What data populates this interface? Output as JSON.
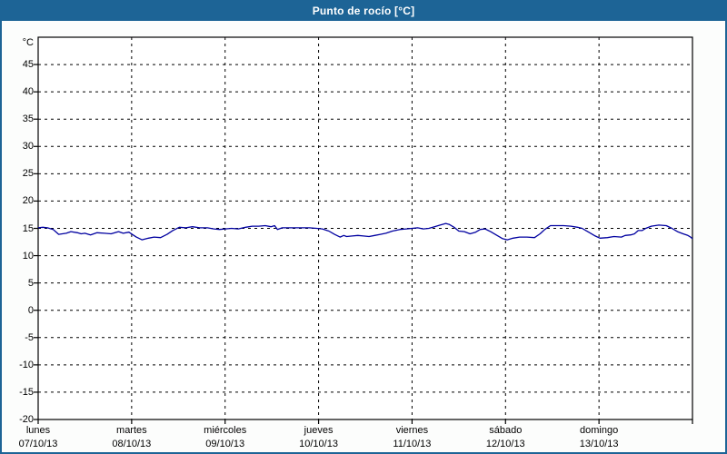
{
  "window": {
    "title": "Punto de rocío [°C]"
  },
  "colors": {
    "titlebar": "#1d6496",
    "frame_border": "#1d6496",
    "title_text": "#ffffff",
    "plot_bg": "#ffffff",
    "grid": "#000000",
    "axis": "#000000",
    "label_text": "#000000",
    "line": "#0000a0"
  },
  "chart_data": {
    "type": "line",
    "title": "Punto de rocío [°C]",
    "y_unit": "°C",
    "ylim": [
      -20,
      50
    ],
    "yticks": [
      45,
      40,
      35,
      30,
      25,
      20,
      15,
      10,
      5,
      0,
      -5,
      -10,
      -15,
      -20
    ],
    "xlim_days": [
      0,
      7
    ],
    "grid": "dashed",
    "legend": "none",
    "x_days": [
      {
        "name": "lunes",
        "date": "07/10/13"
      },
      {
        "name": "martes",
        "date": "08/10/13"
      },
      {
        "name": "miércoles",
        "date": "09/10/13"
      },
      {
        "name": "jueves",
        "date": "10/10/13"
      },
      {
        "name": "viernes",
        "date": "11/10/13"
      },
      {
        "name": "sábado",
        "date": "12/10/13"
      },
      {
        "name": "domingo",
        "date": "13/10/13"
      }
    ],
    "series": [
      {
        "name": "Punto de rocío",
        "color": "#0000a0",
        "points": [
          [
            0,
            15.1
          ],
          [
            0.05,
            15.2
          ],
          [
            0.1,
            15.1
          ],
          [
            0.16,
            14.8
          ],
          [
            0.22,
            13.9
          ],
          [
            0.26,
            14.0
          ],
          [
            0.3,
            14.1
          ],
          [
            0.35,
            14.4
          ],
          [
            0.42,
            14.2
          ],
          [
            0.46,
            14.0
          ],
          [
            0.5,
            14.1
          ],
          [
            0.56,
            13.8
          ],
          [
            0.63,
            14.2
          ],
          [
            0.71,
            14.1
          ],
          [
            0.78,
            14.0
          ],
          [
            0.86,
            14.4
          ],
          [
            0.91,
            14.1
          ],
          [
            0.97,
            14.3
          ],
          [
            1.05,
            13.4
          ],
          [
            1.11,
            12.9
          ],
          [
            1.18,
            13.2
          ],
          [
            1.24,
            13.4
          ],
          [
            1.31,
            13.3
          ],
          [
            1.38,
            13.9
          ],
          [
            1.44,
            14.6
          ],
          [
            1.51,
            15.2
          ],
          [
            1.58,
            15.1
          ],
          [
            1.65,
            15.3
          ],
          [
            1.73,
            15.1
          ],
          [
            1.81,
            15.1
          ],
          [
            1.88,
            14.9
          ],
          [
            1.94,
            14.8
          ],
          [
            2.0,
            14.9
          ],
          [
            2.07,
            15.0
          ],
          [
            2.14,
            14.9
          ],
          [
            2.22,
            15.2
          ],
          [
            2.29,
            15.4
          ],
          [
            2.36,
            15.4
          ],
          [
            2.43,
            15.5
          ],
          [
            2.49,
            15.3
          ],
          [
            2.53,
            15.5
          ],
          [
            2.56,
            14.8
          ],
          [
            2.61,
            15.1
          ],
          [
            2.7,
            15.1
          ],
          [
            2.8,
            15.1
          ],
          [
            2.9,
            15.1
          ],
          [
            2.98,
            15.0
          ],
          [
            3.04,
            14.9
          ],
          [
            3.11,
            14.5
          ],
          [
            3.17,
            13.9
          ],
          [
            3.23,
            13.4
          ],
          [
            3.27,
            13.7
          ],
          [
            3.3,
            13.5
          ],
          [
            3.36,
            13.6
          ],
          [
            3.42,
            13.7
          ],
          [
            3.48,
            13.6
          ],
          [
            3.54,
            13.5
          ],
          [
            3.6,
            13.7
          ],
          [
            3.66,
            13.9
          ],
          [
            3.72,
            14.1
          ],
          [
            3.79,
            14.5
          ],
          [
            3.87,
            14.8
          ],
          [
            3.94,
            14.9
          ],
          [
            4.0,
            15.0
          ],
          [
            4.06,
            15.1
          ],
          [
            4.12,
            14.9
          ],
          [
            4.18,
            15.0
          ],
          [
            4.24,
            15.3
          ],
          [
            4.3,
            15.6
          ],
          [
            4.36,
            15.9
          ],
          [
            4.4,
            15.7
          ],
          [
            4.45,
            15.2
          ],
          [
            4.5,
            14.5
          ],
          [
            4.56,
            14.4
          ],
          [
            4.62,
            14.0
          ],
          [
            4.68,
            14.3
          ],
          [
            4.73,
            14.8
          ],
          [
            4.78,
            14.9
          ],
          [
            4.84,
            14.4
          ],
          [
            4.91,
            13.7
          ],
          [
            4.97,
            13.1
          ],
          [
            5.02,
            12.9
          ],
          [
            5.08,
            13.2
          ],
          [
            5.15,
            13.4
          ],
          [
            5.23,
            13.4
          ],
          [
            5.31,
            13.3
          ],
          [
            5.37,
            14.0
          ],
          [
            5.42,
            14.8
          ],
          [
            5.48,
            15.5
          ],
          [
            5.55,
            15.5
          ],
          [
            5.62,
            15.5
          ],
          [
            5.7,
            15.4
          ],
          [
            5.77,
            15.2
          ],
          [
            5.82,
            15.0
          ],
          [
            5.89,
            14.3
          ],
          [
            5.96,
            13.6
          ],
          [
            6.01,
            13.2
          ],
          [
            6.09,
            13.3
          ],
          [
            6.16,
            13.5
          ],
          [
            6.24,
            13.4
          ],
          [
            6.28,
            13.7
          ],
          [
            6.34,
            13.8
          ],
          [
            6.38,
            14.0
          ],
          [
            6.42,
            14.6
          ],
          [
            6.46,
            14.6
          ],
          [
            6.5,
            15.0
          ],
          [
            6.56,
            15.4
          ],
          [
            6.64,
            15.6
          ],
          [
            6.72,
            15.5
          ],
          [
            6.78,
            15.0
          ],
          [
            6.84,
            14.4
          ],
          [
            6.9,
            14.0
          ],
          [
            6.95,
            13.7
          ],
          [
            6.98,
            13.4
          ],
          [
            7.0,
            13.1
          ]
        ]
      }
    ]
  }
}
